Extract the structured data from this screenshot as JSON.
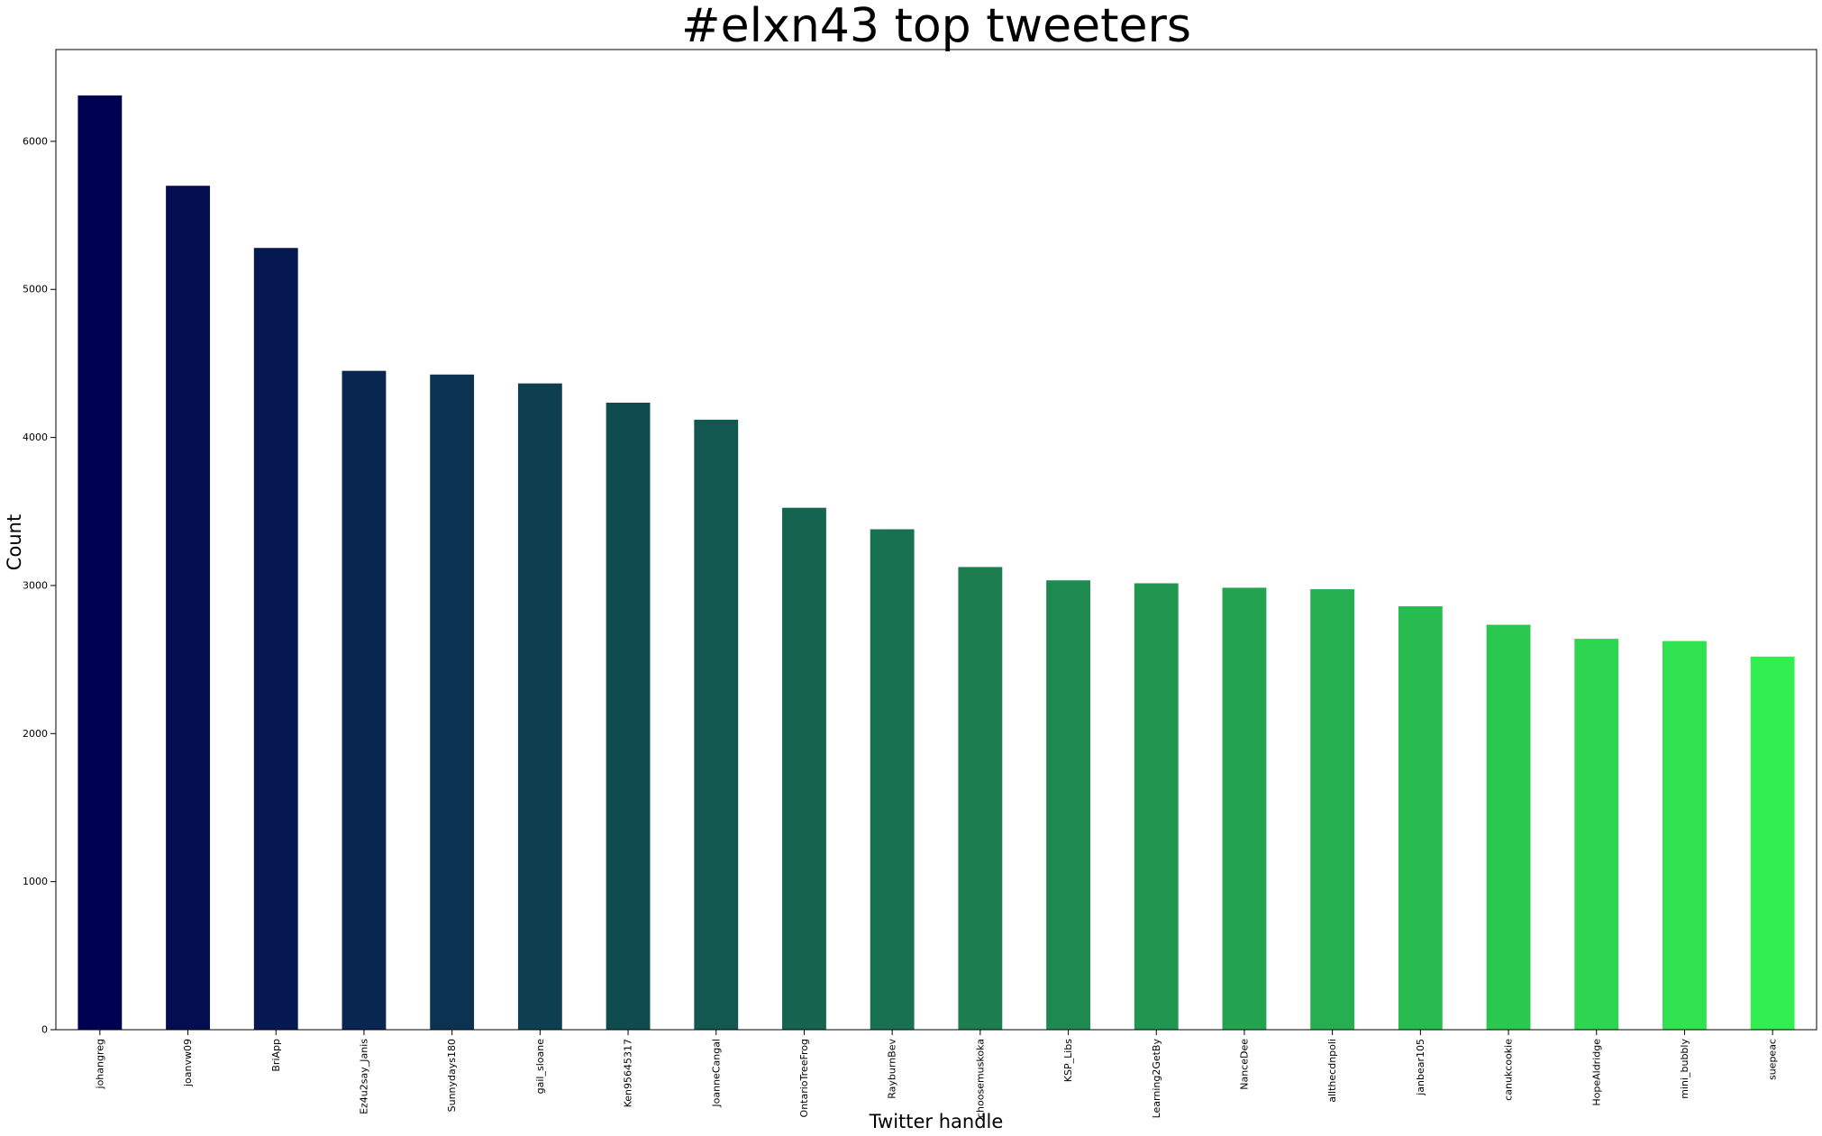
{
  "chart_data": {
    "type": "bar",
    "title": "#elxn43 top tweeters",
    "xlabel": "Twitter handle",
    "ylabel": "Count",
    "categories": [
      "johangreg",
      "joanvw09",
      "BriApp",
      "Ez4u2say_Janis",
      "Sunnydays180",
      "gail_sloane",
      "Ken95645317",
      "JoanneCangal",
      "OntarioTreeFrog",
      "RayburnBev",
      "choosemuskoka",
      "KSP_Libs",
      "Learning2GetBy",
      "NanceDee",
      "allthecdnpoli",
      "janbear105",
      "canukcookie",
      "HopeAldridge",
      "mini_bubbly",
      "suepeac"
    ],
    "values": [
      6310,
      5700,
      5280,
      4450,
      4425,
      4365,
      4235,
      4120,
      3525,
      3380,
      3125,
      3035,
      3015,
      2985,
      2975,
      2860,
      2735,
      2640,
      2625,
      2520
    ],
    "yticks": [
      0,
      1000,
      2000,
      3000,
      4000,
      5000,
      6000
    ],
    "ylim": [
      0,
      6620
    ],
    "grid": false,
    "legend": "none",
    "colormap": [
      "#000050",
      "#33ee50"
    ]
  }
}
